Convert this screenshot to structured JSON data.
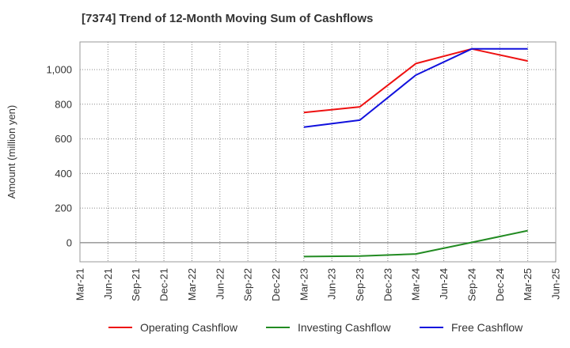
{
  "chart_data": {
    "type": "line",
    "title": "[7374]  Trend of 12-Month Moving Sum of Cashflows",
    "xlabel": "",
    "ylabel": "Amount (million yen)",
    "x_ticks": [
      "Mar-21",
      "Jun-21",
      "Sep-21",
      "Dec-21",
      "Mar-22",
      "Jun-22",
      "Sep-22",
      "Dec-22",
      "Mar-23",
      "Jun-23",
      "Sep-23",
      "Dec-23",
      "Mar-24",
      "Jun-24",
      "Sep-24",
      "Dec-24",
      "Mar-25",
      "Jun-25"
    ],
    "y_ticks": [
      "0",
      "200",
      "400",
      "600",
      "800",
      "1,000"
    ],
    "y_tick_values": [
      0,
      200,
      400,
      600,
      800,
      1000
    ],
    "ylim": [
      -110,
      1160
    ],
    "grid": true,
    "legend_position": "bottom",
    "series": [
      {
        "name": "Operating Cashflow",
        "color": "#ee1111",
        "x": [
          "Mar-23",
          "Sep-23",
          "Mar-24",
          "Sep-24",
          "Mar-25"
        ],
        "values": [
          752,
          785,
          1035,
          1120,
          1050
        ]
      },
      {
        "name": "Investing Cashflow",
        "color": "#228b22",
        "x": [
          "Mar-23",
          "Sep-23",
          "Mar-24",
          "Sep-24",
          "Mar-25"
        ],
        "values": [
          -80,
          -77,
          -65,
          2,
          70
        ]
      },
      {
        "name": "Free Cashflow",
        "color": "#1111dd",
        "x": [
          "Mar-23",
          "Sep-23",
          "Mar-24",
          "Sep-24",
          "Mar-25"
        ],
        "values": [
          668,
          708,
          968,
          1120,
          1120
        ]
      }
    ]
  }
}
